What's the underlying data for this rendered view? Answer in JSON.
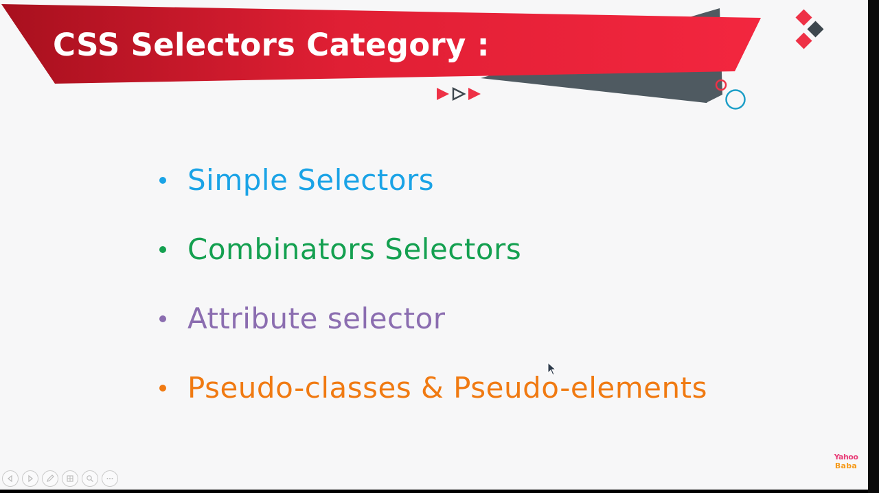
{
  "slide": {
    "title": "CSS Selectors Category :",
    "bullets": [
      {
        "text": "Simple Selectors",
        "color": "#1aa3e6"
      },
      {
        "text": "Combinators Selectors",
        "color": "#14a050"
      },
      {
        "text": "Attribute selector",
        "color": "#8b6db0"
      },
      {
        "text": "Pseudo-classes & Pseudo-elements",
        "color": "#f07a12"
      }
    ]
  },
  "watermark": {
    "line1": "Yahoo",
    "line2": "Baba",
    "color_line1": "#e8407a",
    "color_line2": "#f59a1a"
  },
  "colors": {
    "banner_red": "#e8243d",
    "banner_dark_red": "#a8101e",
    "banner_gray": "#4f5a61",
    "accent_red": "#ee3146",
    "accent_dark": "#3d474e",
    "accent_teal": "#1c9ec7"
  },
  "icons": {
    "corner": "diamond-cluster-icon",
    "play": "play-arrows-icon",
    "rings": "ring-icon",
    "cursor": "mouse-pointer-icon",
    "controls": [
      "previous-icon",
      "next-icon",
      "pen-icon",
      "slides-grid-icon",
      "zoom-icon",
      "more-icon"
    ]
  }
}
